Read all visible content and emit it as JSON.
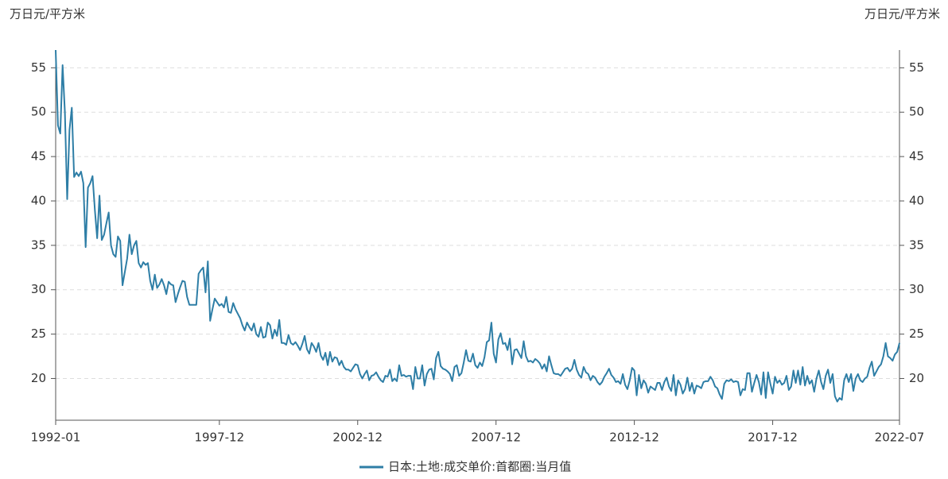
{
  "chart_data": {
    "type": "line",
    "ylabel": "万日元/平方米",
    "y2label": "万日元/平方米",
    "categories": [
      "1992-01",
      null,
      null,
      null,
      null,
      null,
      null,
      null,
      null,
      null,
      null,
      null,
      null,
      null,
      null,
      null,
      null,
      null,
      null,
      null,
      null,
      null,
      null,
      null,
      null,
      null,
      null,
      null,
      null,
      null,
      null,
      null,
      null,
      null,
      null,
      null,
      null,
      null,
      null,
      null,
      null,
      null,
      null,
      null,
      null,
      null,
      null,
      null,
      null,
      null,
      null,
      null,
      null,
      null,
      null,
      null,
      null,
      null,
      null,
      null,
      null,
      null,
      null,
      null,
      null,
      null,
      null,
      null,
      null,
      null,
      null,
      "1997-12",
      null,
      null,
      null,
      null,
      null,
      null,
      null,
      null,
      null,
      null,
      null,
      null,
      null,
      null,
      null,
      null,
      null,
      null,
      null,
      null,
      null,
      null,
      null,
      null,
      null,
      null,
      null,
      null,
      null,
      null,
      null,
      null,
      null,
      null,
      null,
      null,
      null,
      null,
      null,
      null,
      null,
      null,
      null,
      null,
      null,
      null,
      null,
      null,
      null,
      null,
      null,
      null,
      null,
      null,
      null,
      null,
      null,
      null,
      null,
      "2002-12",
      null,
      null,
      null,
      null,
      null,
      null,
      null,
      null,
      null,
      null,
      null,
      null,
      null,
      null,
      null,
      null,
      null,
      null,
      null,
      null,
      null,
      null,
      null,
      null,
      null,
      null,
      null,
      null,
      null,
      null,
      null,
      null,
      null,
      null,
      null,
      null,
      null,
      null,
      null,
      null,
      null,
      null,
      null,
      null,
      null,
      null,
      null,
      null,
      null,
      null,
      null,
      null,
      null,
      null,
      null,
      null,
      null,
      null,
      null,
      "2007-12",
      null,
      null,
      null,
      null,
      null,
      null,
      null,
      null,
      null,
      null,
      null,
      null,
      null,
      null,
      null,
      null,
      null,
      null,
      null,
      null,
      null,
      null,
      null,
      null,
      null,
      null,
      null,
      null,
      null,
      null,
      null,
      null,
      null,
      null,
      null,
      null,
      null,
      null,
      null,
      null,
      null,
      null,
      null,
      null,
      null,
      null,
      null,
      null,
      null,
      null,
      null,
      null,
      null,
      null,
      null,
      null,
      null,
      null,
      null,
      "2012-12",
      null,
      null,
      null,
      null,
      null,
      null,
      null,
      null,
      null,
      null,
      null,
      null,
      null,
      null,
      null,
      null,
      null,
      null,
      null,
      null,
      null,
      null,
      null,
      null,
      null,
      null,
      null,
      null,
      null,
      null,
      null,
      null,
      null,
      null,
      null,
      null,
      null,
      null,
      null,
      null,
      null,
      null,
      null,
      null,
      null,
      null,
      null,
      null,
      null,
      null,
      null,
      null,
      null,
      null,
      null,
      null,
      null,
      null,
      null,
      "2017-12",
      null,
      null,
      null,
      null,
      null,
      null,
      null,
      null,
      null,
      null,
      null,
      null,
      null,
      null,
      null,
      null,
      null,
      null,
      null,
      null,
      null,
      null,
      null,
      null,
      null,
      null,
      null,
      null,
      null,
      null,
      null,
      null,
      null,
      null,
      null,
      null,
      null,
      null,
      null,
      null,
      null,
      null,
      null,
      null,
      null,
      null,
      null,
      null,
      null,
      null,
      null,
      null,
      null,
      null,
      "2022-07"
    ],
    "series": [
      {
        "name": "日本:土地:成交单价:首都圈:当月值",
        "color": "#2e7ea6",
        "values": [
          57,
          48.5,
          47.6,
          55.3,
          50,
          40.2,
          48,
          50.5,
          42.7,
          43.2,
          42.8,
          43.3,
          42,
          34.8,
          41.5,
          42,
          42.8,
          39,
          35.8,
          40.6,
          35.6,
          36.2,
          37.5,
          38.7,
          35,
          34,
          33.7,
          36,
          35.5,
          30.5,
          32,
          33.5,
          36.2,
          34,
          35,
          35.5,
          33,
          32.5,
          33.1,
          32.8,
          33,
          31,
          30,
          31.7,
          30.2,
          30.6,
          31.2,
          30.5,
          29.5,
          30.9,
          30.6,
          30.5,
          28.6,
          29.5,
          30.3,
          31,
          30.9,
          29.2,
          28.3,
          28.3,
          28.3,
          28.3,
          31.8,
          32.2,
          32.5,
          29.7,
          33.2,
          26.5,
          27.8,
          29,
          28.6,
          28.2,
          28.4,
          28,
          29.2,
          27.5,
          27.4,
          28.5,
          27.8,
          27.3,
          26.8,
          26,
          25.4,
          26.3,
          25.8,
          25.4,
          26.2,
          25,
          24.7,
          25.8,
          24.6,
          24.7,
          26.3,
          26,
          24.5,
          25.5,
          24.8,
          26.6,
          24,
          24,
          23.8,
          24.9,
          24,
          23.8,
          24.1,
          23.7,
          23.2,
          23.9,
          24.8,
          23.3,
          22.8,
          24,
          23.6,
          23,
          24,
          22.6,
          22.1,
          22.9,
          21.5,
          23,
          21.9,
          22.4,
          22.3,
          21.5,
          22,
          21.3,
          21,
          21,
          20.8,
          21.2,
          21.6,
          21.5,
          20.5,
          20,
          20.5,
          20.9,
          19.8,
          20.3,
          20.4,
          20.7,
          20.2,
          19.8,
          19.6,
          20.3,
          20.2,
          21,
          19.7,
          20,
          19.7,
          21.5,
          20.3,
          20.4,
          20.2,
          20.3,
          20.3,
          18.8,
          21.3,
          20,
          20,
          21.5,
          19.2,
          20.5,
          21,
          21.1,
          19.9,
          22.3,
          23,
          21.4,
          21.1,
          21,
          20.8,
          20.5,
          19.7,
          21.3,
          21.5,
          20.3,
          20.6,
          21.8,
          23.2,
          22,
          21.9,
          22.8,
          21.5,
          21.2,
          21.8,
          21.4,
          22.4,
          24.1,
          24.3,
          26.3,
          22.8,
          21.8,
          24.4,
          25.1,
          23.9,
          24,
          23.2,
          24.5,
          21.6,
          23.2,
          23.3,
          22.8,
          22.3,
          24.2,
          22.5,
          21.9,
          22,
          21.8,
          22.2,
          22,
          21.7,
          21.1,
          21.6,
          20.8,
          22.5,
          21.5,
          20.6,
          20.5,
          20.5,
          20.3,
          20.7,
          21.1,
          21.2,
          20.8,
          21.1,
          22.1,
          21,
          20.4,
          20.1,
          21.3,
          20.7,
          20.5,
          19.8,
          20.3,
          20.1,
          19.6,
          19.3,
          19.6,
          20.2,
          20.6,
          21.1,
          20.4,
          20.1,
          19.6,
          19.7,
          19.4,
          20.5,
          19.3,
          18.8,
          19.8,
          21.2,
          20.9,
          18.1,
          20.4,
          18.9,
          19.8,
          19.4,
          18.4,
          19.1,
          18.9,
          18.7,
          19.5,
          19.5,
          18.7,
          19.6,
          20.1,
          19.1,
          18.6,
          20.4,
          18.1,
          19.8,
          19.3,
          18.3,
          18.8,
          20.1,
          18.6,
          19.5,
          18.3,
          19.2,
          19.1,
          18.9,
          19.6,
          19.7,
          19.7,
          20.2,
          19.8,
          19.1,
          18.9,
          18.2,
          17.7,
          19.4,
          19.8,
          19.7,
          19.9,
          19.6,
          19.7,
          19.6,
          18.1,
          18.8,
          18.7,
          20.6,
          20.6,
          18.5,
          19.5,
          20.4,
          19.6,
          18.2,
          20.7,
          17.8,
          20.7,
          19.4,
          18.3,
          20.2,
          19.5,
          19.8,
          19.3,
          19.5,
          20.3,
          18.7,
          19.1,
          20.9,
          19.5,
          20.9,
          19.3,
          21.3,
          19.2,
          20.3,
          19.4,
          19.8,
          18.5,
          20,
          20.9,
          19.6,
          18.8,
          20.3,
          21,
          19.5,
          20.5,
          18,
          17.4,
          17.8,
          17.6,
          19.8,
          20.5,
          19.6,
          20.5,
          18.6,
          20,
          20.5,
          19.8,
          19.6,
          20,
          20.2,
          21.2,
          21.9,
          20.3,
          20.8,
          21.3,
          21.6,
          22.5,
          24,
          22.5,
          22.3,
          22,
          22.7,
          23,
          24
        ]
      }
    ],
    "ylim": [
      15.3,
      57
    ],
    "yticks": [
      20,
      25,
      30,
      35,
      40,
      45,
      50,
      55
    ],
    "y2lim": [
      15.3,
      57
    ],
    "y2ticks": [
      20,
      25,
      30,
      35,
      40,
      45,
      50,
      55
    ],
    "grid": true
  }
}
